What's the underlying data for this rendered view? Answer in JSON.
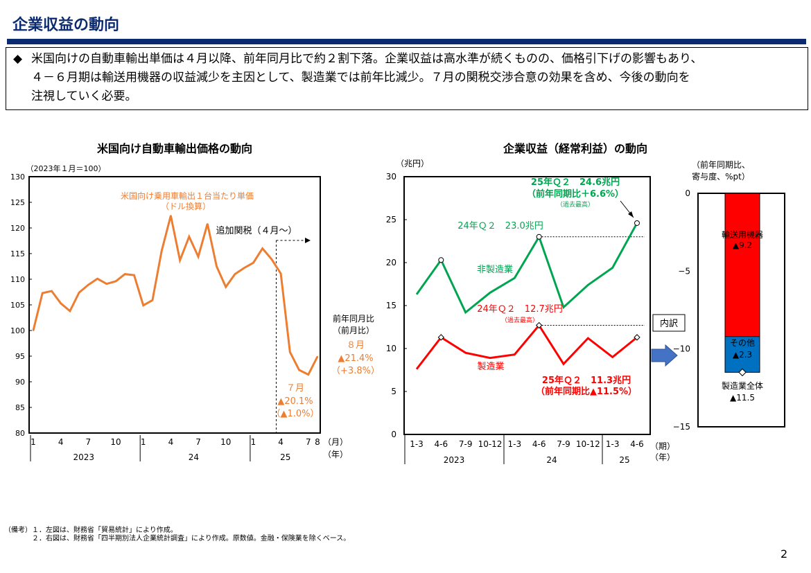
{
  "page": {
    "title": "企業収益の動向",
    "summary_bullet": "◆",
    "summary_lines": [
      "米国向けの自動車輸出単価は４月以降、前年同月比で約２割下落。企業収益は高水準が続くものの、価格引下げの影響もあり、",
      "４－６月期は輸送用機器の収益減少を主因として、製造業では前年比減少。７月の関税交渉合意の効果を含め、今後の動向を",
      "注視していく必要。"
    ],
    "notes": [
      "（備考）１．左図は、財務省「貿易統計」により作成。",
      "　　　　２．右図は、財務省「四半期別法人企業統計調査」により作成。原数値。金融・保険業を除くベース。"
    ],
    "page_number": "2"
  },
  "chart_data": [
    {
      "type": "line",
      "title": "米国向け自動車輸出価格の動向",
      "unit_label": "（2023年１月＝100）",
      "ylim": [
        80,
        130
      ],
      "y_ticks": [
        "130",
        "125",
        "120",
        "115",
        "110",
        "105",
        "100",
        "95",
        "90",
        "85",
        "80"
      ],
      "x_month_labels": [
        "1",
        "4",
        "7",
        "10",
        "1",
        "4",
        "7",
        "10",
        "1",
        "4",
        "7",
        "8"
      ],
      "x_month_label_idx": [
        0,
        3,
        6,
        9,
        12,
        15,
        18,
        21,
        24,
        27,
        30,
        31
      ],
      "x_year_labels": [
        "2023",
        "24",
        "25"
      ],
      "x_unit_month": "（月）",
      "x_unit_year": "（年）",
      "series": [
        {
          "name": "米国向け乗用車輸出１台当たり単価",
          "name_sub": "（ドル換算）",
          "color": "#ed7d31",
          "values": [
            100,
            107.3,
            107.7,
            105.3,
            103.8,
            107.4,
            108.9,
            110.1,
            109.1,
            109.6,
            111.0,
            110.8,
            104.9,
            105.9,
            115.5,
            122.4,
            113.7,
            118.3,
            114.4,
            120.8,
            112.5,
            108.5,
            111.0,
            112.2,
            113.2,
            116.0,
            113.9,
            111.1,
            95.8,
            92.3,
            91.4,
            94.9
          ]
        }
      ],
      "tariff_label": "追加関税（４月～）",
      "change_header": [
        "前年同月比",
        "（前月比）"
      ],
      "aug_change": [
        "８月",
        "▲21.4%",
        "（+3.8%）"
      ],
      "jul_change": [
        "７月",
        "▲20.1%",
        "（▲1.0%）"
      ]
    },
    {
      "type": "line",
      "title": "企業収益（経常利益）の動向",
      "unit_label": "（兆円）",
      "ylim": [
        0,
        30
      ],
      "y_ticks": [
        "30",
        "25",
        "20",
        "15",
        "10",
        "5",
        "0"
      ],
      "x_labels": [
        "1-3",
        "4-6",
        "7-9",
        "10-12",
        "1-3",
        "4-6",
        "7-9",
        "10-12",
        "1-3",
        "4-6"
      ],
      "x_year_labels": [
        "2023",
        "24",
        "25"
      ],
      "x_unit_period": "（期）",
      "x_unit_year": "（年）",
      "series": [
        {
          "name": "非製造業",
          "color": "#00a550",
          "values": [
            16.3,
            20.3,
            14.2,
            16.5,
            18.2,
            23.0,
            14.8,
            17.4,
            19.4,
            24.6
          ]
        },
        {
          "name": "製造業",
          "color": "#ff0000",
          "values": [
            7.6,
            11.3,
            9.5,
            8.9,
            9.3,
            12.7,
            8.2,
            11.2,
            9.0,
            11.3
          ]
        }
      ],
      "ann_nonmfg_24q2": "24年Ｑ２　23.0兆円",
      "ann_nonmfg_25q2": [
        "25年Ｑ２　24.6兆円",
        "（前年同期比＋6.6%）",
        "（過去最高）"
      ],
      "ann_mfg_24q2": [
        "24年Ｑ２　12.7兆円",
        "（過去最高）"
      ],
      "ann_mfg_25q2": [
        "25年Ｑ２　11.3兆円",
        "（前年同期比▲11.5%）"
      ]
    },
    {
      "type": "bar",
      "title_lines": [
        "（前年同期比、",
        "寄与度、%pt）"
      ],
      "ylim": [
        -15,
        0
      ],
      "y_ticks": [
        "0",
        "−5",
        "−10",
        "−15"
      ],
      "stack": [
        {
          "name": "輸送用機器",
          "label": "▲9.2",
          "value": -9.2,
          "color": "#ff0000"
        },
        {
          "name": "その他",
          "label": "▲2.3",
          "value": -2.3,
          "color": "#0070c0"
        }
      ],
      "total_name": "製造業全体",
      "total_label": "▲11.5",
      "total_value": -11.5,
      "breakdown_label": "内訳"
    }
  ]
}
